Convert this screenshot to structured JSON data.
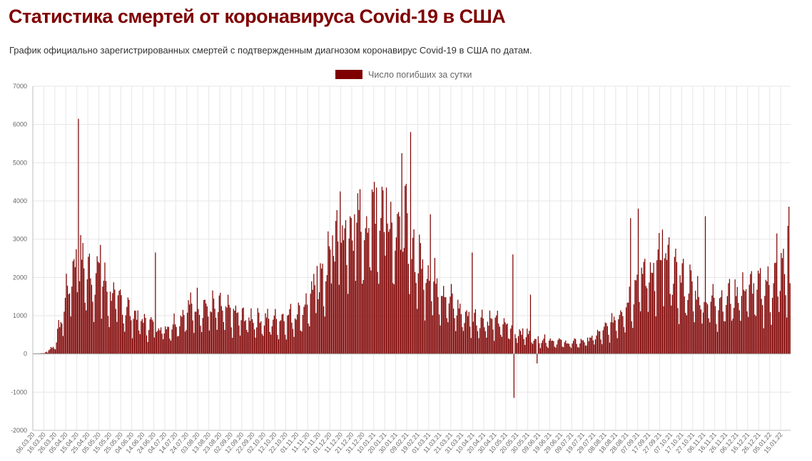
{
  "page": {
    "title": "Статистика смертей от коронавируса Covid-19 в США",
    "subtitle": "График официально зарегистрированных смертей с подтвержденным диагнозом коронавирус Covid-19 в США по датам."
  },
  "colors": {
    "accent": "#7f0000",
    "bar": "#7f0000",
    "grid": "#e6e6e6",
    "text": "#666666"
  },
  "chart_data": {
    "type": "bar",
    "legend": {
      "label": "Число погибших за сутки",
      "position": "top-center"
    },
    "ylim": [
      -2000,
      7000
    ],
    "yticks": [
      7000,
      6000,
      5000,
      4000,
      3000,
      2000,
      1000,
      0,
      -1000,
      -2000
    ],
    "grid": true,
    "x_start": "06.03.20",
    "x_end": "23.01.22",
    "xticks": [
      "06.03.20",
      "16.03.20",
      "26.03.20",
      "05.04.20",
      "15.04.20",
      "25.04.20",
      "05.05.20",
      "15.05.20",
      "25.05.20",
      "04.06.20",
      "14.06.20",
      "24.06.20",
      "04.07.20",
      "14.07.20",
      "24.07.20",
      "03.08.20",
      "13.08.20",
      "23.08.20",
      "02.09.20",
      "12.09.20",
      "22.09.20",
      "02.10.20",
      "12.10.20",
      "22.10.20",
      "01.11.20",
      "11.11.20",
      "21.11.20",
      "01.12.20",
      "11.12.20",
      "21.12.20",
      "31.12.20",
      "10.01.21",
      "20.01.21",
      "30.01.21",
      "09.02.21",
      "19.02.21",
      "01.03.21",
      "11.03.21",
      "21.03.21",
      "31.03.21",
      "10.04.21",
      "20.04.21",
      "30.04.21",
      "10.05.21",
      "20.05.21",
      "30.05.21",
      "09.06.21",
      "19.06.21",
      "29.06.21",
      "09.07.21",
      "19.07.21",
      "29.07.21",
      "08.08.21",
      "18.08.21",
      "28.08.21",
      "07.09.21",
      "17.09.21",
      "27.09.21",
      "07.10.21",
      "17.10.21",
      "27.10.21",
      "06.11.21",
      "16.11.21",
      "26.11.21",
      "06.12.21",
      "16.12.21",
      "26.12.21",
      "05.01.22",
      "15.01.22"
    ],
    "series": [
      {
        "name": "Число погибших за сутки",
        "segments": [
          {
            "from": "06.03.20",
            "days": 10,
            "base": [
              5,
              20
            ]
          },
          {
            "from": "16.03.20",
            "days": 10,
            "base": [
              20,
              200
            ]
          },
          {
            "from": "26.03.20",
            "days": 10,
            "base": [
              250,
              1300
            ]
          },
          {
            "from": "05.04.20",
            "days": 10,
            "base": [
              1500,
              2300
            ]
          },
          {
            "from": "15.04.20",
            "days": 10,
            "base": [
              2300,
              1900
            ]
          },
          {
            "from": "25.04.20",
            "days": 10,
            "base": [
              1900,
              1800
            ]
          },
          {
            "from": "05.05.20",
            "days": 10,
            "base": [
              1800,
              1400
            ]
          },
          {
            "from": "15.05.20",
            "days": 10,
            "base": [
              1400,
              1200
            ]
          },
          {
            "from": "25.05.20",
            "days": 10,
            "base": [
              1200,
              950
            ]
          },
          {
            "from": "04.06.20",
            "days": 10,
            "base": [
              950,
              750
            ]
          },
          {
            "from": "14.06.20",
            "days": 10,
            "base": [
              750,
              650
            ]
          },
          {
            "from": "24.06.20",
            "days": 10,
            "base": [
              650,
              600
            ]
          },
          {
            "from": "04.07.20",
            "days": 10,
            "base": [
              600,
              750
            ]
          },
          {
            "from": "14.07.20",
            "days": 10,
            "base": [
              750,
              1050
            ]
          },
          {
            "from": "24.07.20",
            "days": 10,
            "base": [
              1050,
              1150
            ]
          },
          {
            "from": "03.08.20",
            "days": 10,
            "base": [
              1150,
              1100
            ]
          },
          {
            "from": "13.08.20",
            "days": 10,
            "base": [
              1100,
              1050
            ]
          },
          {
            "from": "23.08.20",
            "days": 10,
            "base": [
              1050,
              950
            ]
          },
          {
            "from": "02.09.20",
            "days": 10,
            "base": [
              950,
              850
            ]
          },
          {
            "from": "12.09.20",
            "days": 10,
            "base": [
              850,
              850
            ]
          },
          {
            "from": "22.09.20",
            "days": 10,
            "base": [
              850,
              800
            ]
          },
          {
            "from": "02.10.20",
            "days": 10,
            "base": [
              800,
              800
            ]
          },
          {
            "from": "12.10.20",
            "days": 10,
            "base": [
              800,
              850
            ]
          },
          {
            "from": "22.10.20",
            "days": 10,
            "base": [
              850,
              950
            ]
          },
          {
            "from": "01.11.20",
            "days": 10,
            "base": [
              950,
              1200
            ]
          },
          {
            "from": "11.11.20",
            "days": 10,
            "base": [
              1200,
              1600
            ]
          },
          {
            "from": "21.11.20",
            "days": 10,
            "base": [
              1600,
              2200
            ]
          },
          {
            "from": "01.12.20",
            "days": 10,
            "base": [
              2200,
              2700
            ]
          },
          {
            "from": "11.12.20",
            "days": 10,
            "base": [
              2700,
              2900
            ]
          },
          {
            "from": "21.12.20",
            "days": 10,
            "base": [
              2900,
              3000
            ]
          },
          {
            "from": "31.12.20",
            "days": 10,
            "base": [
              3000,
              3400
            ]
          },
          {
            "from": "10.01.21",
            "days": 10,
            "base": [
              3400,
              3300
            ]
          },
          {
            "from": "20.01.21",
            "days": 10,
            "base": [
              3300,
              3100
            ]
          },
          {
            "from": "30.01.21",
            "days": 10,
            "base": [
              3100,
              2900
            ]
          },
          {
            "from": "09.02.21",
            "days": 10,
            "base": [
              2900,
              2200
            ]
          },
          {
            "from": "19.02.21",
            "days": 10,
            "base": [
              2200,
              1900
            ]
          },
          {
            "from": "01.03.21",
            "days": 10,
            "base": [
              1900,
              1600
            ]
          },
          {
            "from": "11.03.21",
            "days": 10,
            "base": [
              1600,
              1200
            ]
          },
          {
            "from": "21.03.21",
            "days": 10,
            "base": [
              1200,
              950
            ]
          },
          {
            "from": "31.03.21",
            "days": 10,
            "base": [
              950,
              850
            ]
          },
          {
            "from": "10.04.21",
            "days": 10,
            "base": [
              850,
              800
            ]
          },
          {
            "from": "20.04.21",
            "days": 10,
            "base": [
              800,
              750
            ]
          },
          {
            "from": "30.04.21",
            "days": 10,
            "base": [
              750,
              650
            ]
          },
          {
            "from": "10.05.21",
            "days": 10,
            "base": [
              650,
              550
            ]
          },
          {
            "from": "20.05.21",
            "days": 10,
            "base": [
              550,
              450
            ]
          },
          {
            "from": "30.05.21",
            "days": 10,
            "base": [
              450,
              350
            ]
          },
          {
            "from": "09.06.21",
            "days": 10,
            "base": [
              350,
              320
            ]
          },
          {
            "from": "19.06.21",
            "days": 10,
            "base": [
              320,
              280
            ]
          },
          {
            "from": "29.06.21",
            "days": 10,
            "base": [
              280,
              250
            ]
          },
          {
            "from": "09.07.21",
            "days": 10,
            "base": [
              250,
              300
            ]
          },
          {
            "from": "19.07.21",
            "days": 10,
            "base": [
              300,
              400
            ]
          },
          {
            "from": "29.07.21",
            "days": 10,
            "base": [
              400,
              550
            ]
          },
          {
            "from": "08.08.21",
            "days": 10,
            "base": [
              550,
              850
            ]
          },
          {
            "from": "18.08.21",
            "days": 10,
            "base": [
              850,
              1200
            ]
          },
          {
            "from": "28.08.21",
            "days": 10,
            "base": [
              1200,
              1700
            ]
          },
          {
            "from": "07.09.21",
            "days": 10,
            "base": [
              1700,
              2000
            ]
          },
          {
            "from": "17.09.21",
            "days": 10,
            "base": [
              2000,
              2100
            ]
          },
          {
            "from": "27.09.21",
            "days": 10,
            "base": [
              2100,
              1900
            ]
          },
          {
            "from": "07.10.21",
            "days": 10,
            "base": [
              1900,
              1700
            ]
          },
          {
            "from": "17.10.21",
            "days": 10,
            "base": [
              1700,
              1500
            ]
          },
          {
            "from": "27.10.21",
            "days": 10,
            "base": [
              1500,
              1300
            ]
          },
          {
            "from": "06.11.21",
            "days": 10,
            "base": [
              1300,
              1250
            ]
          },
          {
            "from": "16.11.21",
            "days": 10,
            "base": [
              1250,
              1300
            ]
          },
          {
            "from": "26.11.21",
            "days": 10,
            "base": [
              1300,
              1450
            ]
          },
          {
            "from": "06.12.21",
            "days": 10,
            "base": [
              1450,
              1550
            ]
          },
          {
            "from": "16.12.21",
            "days": 10,
            "base": [
              1550,
              1500
            ]
          },
          {
            "from": "26.12.21",
            "days": 10,
            "base": [
              1500,
              1600
            ]
          },
          {
            "from": "05.01.22",
            "days": 10,
            "base": [
              1600,
              1900
            ]
          },
          {
            "from": "15.01.22",
            "days": 9,
            "base": [
              1900,
              2100
            ]
          }
        ],
        "weekly_pattern": [
          1.05,
          1.2,
          1.3,
          1.25,
          1.1,
          0.75,
          0.55
        ],
        "overrides": [
          {
            "date": "16.04.20",
            "value": 6150
          },
          {
            "date": "20.04.20",
            "value": 2900
          },
          {
            "date": "06.05.20",
            "value": 2850
          },
          {
            "date": "25.06.20",
            "value": 2650
          },
          {
            "date": "19.11.20",
            "value": 2300
          },
          {
            "date": "03.12.20",
            "value": 3100
          },
          {
            "date": "10.12.20",
            "value": 4250
          },
          {
            "date": "23.12.20",
            "value": 3650
          },
          {
            "date": "08.01.21",
            "value": 4300
          },
          {
            "date": "12.01.21",
            "value": 4350
          },
          {
            "date": "21.01.21",
            "value": 4350
          },
          {
            "date": "04.02.21",
            "value": 5250
          },
          {
            "date": "12.02.21",
            "value": 5800
          },
          {
            "date": "02.03.21",
            "value": 3650
          },
          {
            "date": "09.04.21",
            "value": 2650
          },
          {
            "date": "16.05.21",
            "value": 2600
          },
          {
            "date": "17.05.21",
            "value": -1150
          },
          {
            "date": "01.06.21",
            "value": 1550
          },
          {
            "date": "07.06.21",
            "value": -250
          },
          {
            "date": "31.08.21",
            "value": 3550
          },
          {
            "date": "07.09.21",
            "value": 3800
          },
          {
            "date": "29.09.21",
            "value": 3250
          },
          {
            "date": "05.10.21",
            "value": 3050
          },
          {
            "date": "07.11.21",
            "value": 3600
          },
          {
            "date": "11.01.22",
            "value": 3150
          },
          {
            "date": "21.01.22",
            "value": 3350
          },
          {
            "date": "22.01.22",
            "value": 3850
          },
          {
            "date": "23.01.22",
            "value": 1850
          }
        ]
      }
    ]
  }
}
